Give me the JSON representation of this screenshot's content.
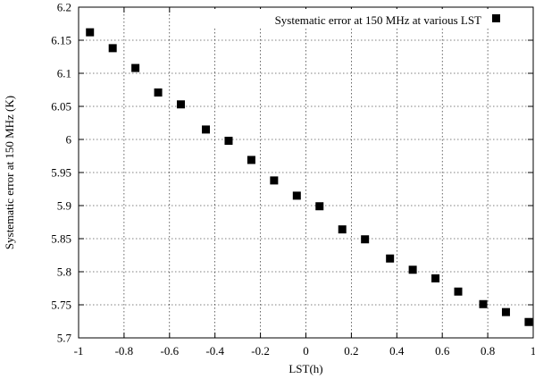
{
  "chart_data": {
    "type": "scatter",
    "xlabel": "LST(h)",
    "ylabel": "Systematic error at 150 MHz (K)",
    "xlim": [
      -1,
      1
    ],
    "ylim": [
      5.7,
      6.2
    ],
    "x_ticks": [
      -1,
      -0.8,
      -0.6,
      -0.4,
      -0.2,
      0,
      0.2,
      0.4,
      0.6,
      0.8,
      1
    ],
    "x_tick_labels": [
      "-1",
      "-0.8",
      "-0.6",
      "-0.4",
      "-0.2",
      "0",
      "0.2",
      "0.4",
      "0.6",
      "0.8",
      "1"
    ],
    "y_ticks": [
      5.7,
      5.75,
      5.8,
      5.85,
      5.9,
      5.95,
      6.0,
      6.05,
      6.1,
      6.15,
      6.2
    ],
    "y_tick_labels": [
      "5.7",
      "5.75",
      "5.8",
      "5.85",
      "5.9",
      "5.95",
      "6",
      "6.05",
      "6.1",
      "6.15",
      "6.2"
    ],
    "grid": true,
    "legend_position": "top-right",
    "marker": "square",
    "series": [
      {
        "name": "Systematic error at 150 MHz at various LST",
        "color": "#000000",
        "x": [
          -0.95,
          -0.85,
          -0.75,
          -0.65,
          -0.55,
          -0.44,
          -0.34,
          -0.24,
          -0.14,
          -0.04,
          0.06,
          0.16,
          0.26,
          0.37,
          0.47,
          0.57,
          0.67,
          0.78,
          0.88,
          0.98
        ],
        "y": [
          6.162,
          6.138,
          6.108,
          6.071,
          6.053,
          6.015,
          5.998,
          5.969,
          5.938,
          5.915,
          5.899,
          5.864,
          5.849,
          5.82,
          5.803,
          5.79,
          5.77,
          5.751,
          5.739,
          5.724
        ]
      }
    ]
  }
}
